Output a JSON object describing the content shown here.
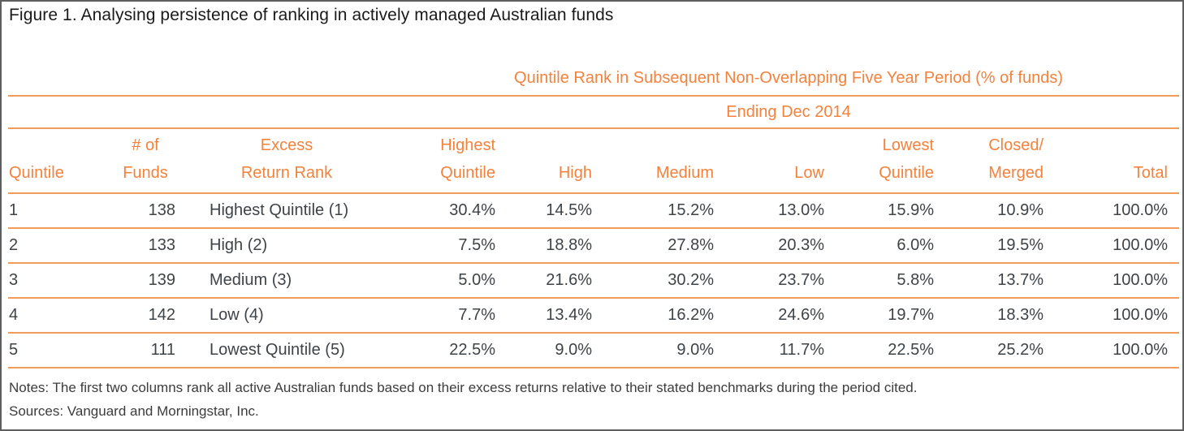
{
  "panel": {
    "title": "Figure 1. Analysing persistence of ranking in actively managed Australian funds"
  },
  "table": {
    "span_header": "Quintile Rank in Subsequent Non-Overlapping Five Year Period (% of funds)",
    "period_header": "Ending Dec 2014",
    "columns": [
      {
        "line1": "",
        "line2": "Quintile"
      },
      {
        "line1": "# of",
        "line2": "Funds"
      },
      {
        "line1": "Excess",
        "line2": "Return Rank"
      },
      {
        "line1": "Highest",
        "line2": "Quintile"
      },
      {
        "line1": "",
        "line2": "High"
      },
      {
        "line1": "",
        "line2": "Medium"
      },
      {
        "line1": "",
        "line2": "Low"
      },
      {
        "line1": "Lowest",
        "line2": "Quintile"
      },
      {
        "line1": "Closed/",
        "line2": "Merged"
      },
      {
        "line1": "",
        "line2": "Total"
      }
    ],
    "rows": [
      {
        "cells": [
          "1",
          "138",
          "Highest Quintile (1)",
          "30.4%",
          "14.5%",
          "15.2%",
          "13.0%",
          "15.9%",
          "10.9%",
          "100.0%"
        ]
      },
      {
        "cells": [
          "2",
          "133",
          "High (2)",
          "7.5%",
          "18.8%",
          "27.8%",
          "20.3%",
          "6.0%",
          "19.5%",
          "100.0%"
        ]
      },
      {
        "cells": [
          "3",
          "139",
          "Medium (3)",
          "5.0%",
          "21.6%",
          "30.2%",
          "23.7%",
          "5.8%",
          "13.7%",
          "100.0%"
        ]
      },
      {
        "cells": [
          "4",
          "142",
          "Low (4)",
          "7.7%",
          "13.4%",
          "16.2%",
          "24.6%",
          "19.7%",
          "18.3%",
          "100.0%"
        ]
      },
      {
        "cells": [
          "5",
          "111",
          "Lowest Quintile (5)",
          "22.5%",
          "9.0%",
          "9.0%",
          "11.7%",
          "22.5%",
          "25.2%",
          "100.0%"
        ]
      }
    ]
  },
  "footnotes": {
    "notes": "Notes: The first two columns rank all active Australian funds based on their excess returns relative to their stated benchmarks during the period cited.",
    "sources": "Sources: Vanguard and Morningstar, Inc."
  },
  "colors": {
    "accent_orange": "#F5823C",
    "rule_orange": "#F29C5B",
    "body_text": "#3E4348",
    "title_text": "#1A1A1A",
    "frame_border": "#5E5E5E"
  }
}
